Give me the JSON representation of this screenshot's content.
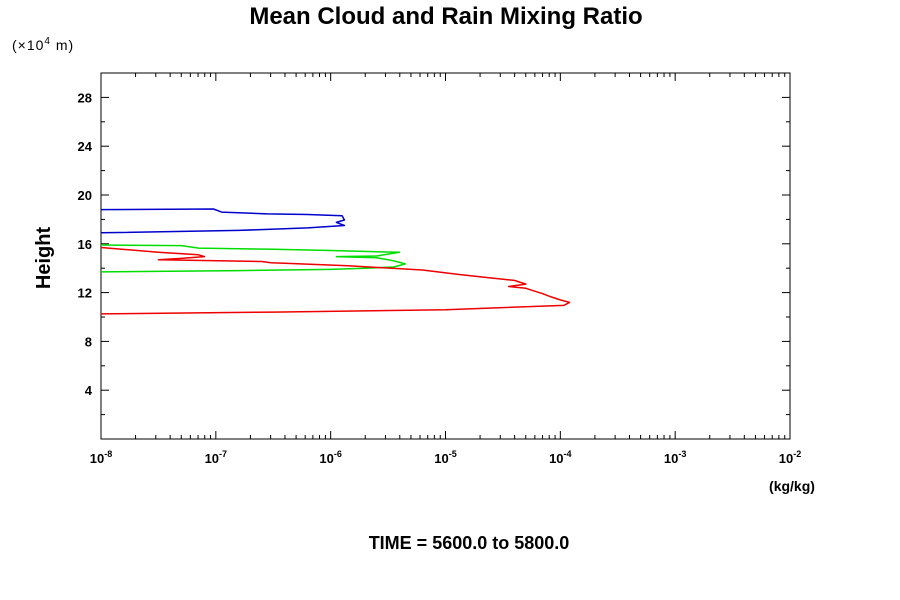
{
  "chart_data": {
    "type": "line",
    "title": "Mean Cloud and Rain Mixing Ratio",
    "y_scale_note": {
      "prefix": "(×10",
      "exponent": "4",
      "suffix": " m)"
    },
    "ylabel": "Height",
    "xlabel": "(kg/kg)",
    "time_label": "TIME = 5600.0 to 5800.0",
    "xscale": "log",
    "xlim_log10": [
      -8,
      -2
    ],
    "x_ticks": [
      {
        "base": "10",
        "exp": "-8",
        "log": -8
      },
      {
        "base": "10",
        "exp": "-7",
        "log": -7
      },
      {
        "base": "10",
        "exp": "-6",
        "log": -6
      },
      {
        "base": "10",
        "exp": "-5",
        "log": -5
      },
      {
        "base": "10",
        "exp": "-4",
        "log": -4
      },
      {
        "base": "10",
        "exp": "-3",
        "log": -3
      },
      {
        "base": "10",
        "exp": "-2",
        "log": -2
      }
    ],
    "ylim": [
      0,
      30
    ],
    "y_ticks": [
      "4",
      "8",
      "12",
      "16",
      "20",
      "24",
      "28"
    ],
    "series": [
      {
        "name": "blue",
        "color": "#0000cc",
        "points": [
          [
            -8.0,
            18.8
          ],
          [
            -7.02,
            18.85
          ],
          [
            -6.95,
            18.6
          ],
          [
            -6.55,
            18.45
          ],
          [
            -6.2,
            18.4
          ],
          [
            -5.9,
            18.3
          ],
          [
            -5.88,
            17.95
          ],
          [
            -5.95,
            17.75
          ],
          [
            -5.88,
            17.5
          ],
          [
            -6.2,
            17.3
          ],
          [
            -6.8,
            17.1
          ],
          [
            -8.0,
            16.9
          ]
        ]
      },
      {
        "name": "green",
        "color": "#00dd00",
        "points": [
          [
            -8.0,
            15.9
          ],
          [
            -7.3,
            15.85
          ],
          [
            -7.15,
            15.65
          ],
          [
            -6.5,
            15.55
          ],
          [
            -6.0,
            15.45
          ],
          [
            -5.4,
            15.3
          ],
          [
            -5.6,
            15.0
          ],
          [
            -5.95,
            14.95
          ],
          [
            -5.6,
            14.85
          ],
          [
            -5.5,
            14.7
          ],
          [
            -5.45,
            14.6
          ],
          [
            -5.35,
            14.35
          ],
          [
            -5.45,
            14.1
          ],
          [
            -5.7,
            14.0
          ],
          [
            -6.0,
            13.9
          ],
          [
            -6.8,
            13.8
          ],
          [
            -8.0,
            13.7
          ]
        ]
      },
      {
        "name": "red",
        "color": "#ee0000",
        "points": [
          [
            -8.0,
            15.7
          ],
          [
            -7.5,
            15.3
          ],
          [
            -7.15,
            15.1
          ],
          [
            -7.1,
            14.95
          ],
          [
            -7.3,
            14.8
          ],
          [
            -7.5,
            14.7
          ],
          [
            -6.6,
            14.55
          ],
          [
            -6.52,
            14.45
          ],
          [
            -6.4,
            14.4
          ],
          [
            -5.85,
            14.2
          ],
          [
            -5.2,
            13.85
          ],
          [
            -4.9,
            13.5
          ],
          [
            -4.6,
            13.2
          ],
          [
            -4.4,
            13.0
          ],
          [
            -4.3,
            12.7
          ],
          [
            -4.45,
            12.5
          ],
          [
            -4.3,
            12.35
          ],
          [
            -4.25,
            12.2
          ],
          [
            -4.15,
            11.9
          ],
          [
            -4.08,
            11.65
          ],
          [
            -4.0,
            11.4
          ],
          [
            -3.92,
            11.2
          ],
          [
            -3.97,
            10.95
          ],
          [
            -5.0,
            10.6
          ],
          [
            -6.5,
            10.4
          ],
          [
            -8.0,
            10.25
          ]
        ]
      }
    ]
  }
}
